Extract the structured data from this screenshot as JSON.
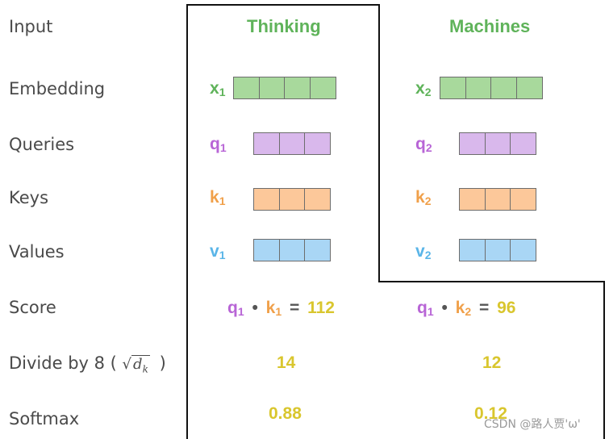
{
  "row_labels": {
    "input": "Input",
    "embedding": "Embedding",
    "queries": "Queries",
    "keys": "Keys",
    "values": "Values",
    "score": "Score",
    "divide_prefix": "Divide by 8 (",
    "divide_sqrt_var": "d",
    "divide_sqrt_sub": "k",
    "divide_suffix": ")",
    "softmax": "Softmax"
  },
  "words": [
    "Thinking",
    "Machines"
  ],
  "vectors": {
    "x": [
      "x",
      "x"
    ],
    "q": [
      "q",
      "q"
    ],
    "k": [
      "k",
      "k"
    ],
    "v": [
      "v",
      "v"
    ],
    "sub": [
      "1",
      "2"
    ]
  },
  "score": {
    "left": {
      "q": "q",
      "q_sub": "1",
      "dot": "•",
      "k": "k",
      "k_sub": "1",
      "eq": "=",
      "value": "112"
    },
    "right": {
      "q": "q",
      "q_sub": "1",
      "dot": "•",
      "k": "k",
      "k_sub": "2",
      "eq": "=",
      "value": "96"
    }
  },
  "divided": [
    "14",
    "12"
  ],
  "softmax": [
    "0.88",
    "0.12"
  ],
  "watermark": "CSDN @路人贾'ω'",
  "colors": {
    "embedding": "#a8d99c",
    "queries": "#d9b8ec",
    "keys": "#fcc89a",
    "values": "#a9d6f5"
  }
}
